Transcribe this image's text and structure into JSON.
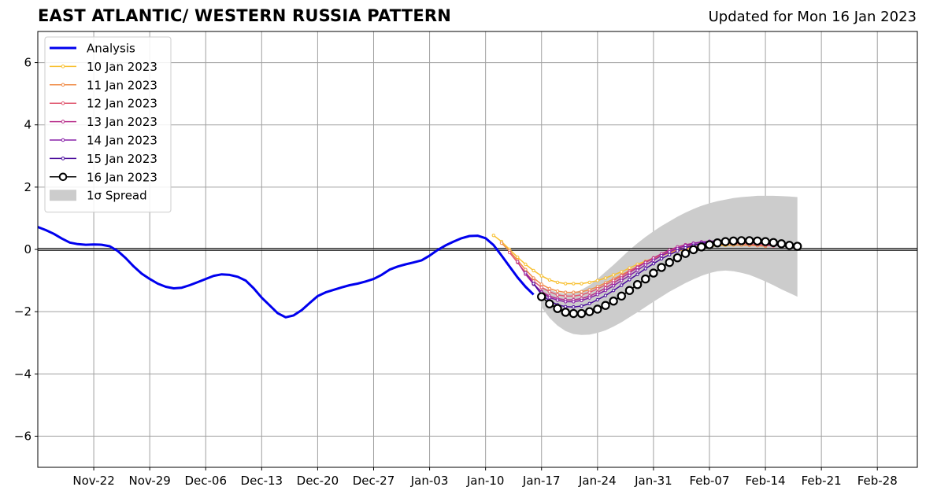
{
  "chart_data": {
    "type": "line",
    "title": "EAST ATLANTIC/ WESTERN RUSSIA PATTERN",
    "subtitle": "Updated for Mon 16 Jan 2023",
    "xlabel": "",
    "ylabel": "",
    "ylim": [
      -7,
      7
    ],
    "yticks": [
      -6,
      -4,
      -2,
      0,
      2,
      4,
      6
    ],
    "ytick_labels": [
      "−6",
      "−4",
      "−2",
      "0",
      "2",
      "4",
      "6"
    ],
    "xlim": [
      "2022-11-15",
      "2023-03-05"
    ],
    "xticks": [
      "2022-11-22",
      "2022-11-29",
      "2022-12-06",
      "2022-12-13",
      "2022-12-20",
      "2022-12-27",
      "2023-01-03",
      "2023-01-10",
      "2023-01-17",
      "2023-01-24",
      "2023-01-31",
      "2023-02-07",
      "2023-02-14",
      "2023-02-21",
      "2023-02-28"
    ],
    "xtick_labels": [
      "Nov-22",
      "Nov-29",
      "Dec-06",
      "Dec-13",
      "Dec-20",
      "Dec-27",
      "Jan-03",
      "Jan-10",
      "Jan-17",
      "Jan-24",
      "Jan-31",
      "Feb-07",
      "Feb-14",
      "Feb-21",
      "Feb-28"
    ],
    "grid": true,
    "legend_position": "top-left",
    "series": [
      {
        "name": "Analysis",
        "color": "#0000ee",
        "marker": "none",
        "x": [
          "2022-11-15",
          "2022-11-16",
          "2022-11-17",
          "2022-11-18",
          "2022-11-19",
          "2022-11-20",
          "2022-11-21",
          "2022-11-22",
          "2022-11-23",
          "2022-11-24",
          "2022-11-25",
          "2022-11-26",
          "2022-11-27",
          "2022-11-28",
          "2022-11-29",
          "2022-11-30",
          "2022-12-01",
          "2022-12-02",
          "2022-12-03",
          "2022-12-04",
          "2022-12-05",
          "2022-12-06",
          "2022-12-07",
          "2022-12-08",
          "2022-12-09",
          "2022-12-10",
          "2022-12-11",
          "2022-12-12",
          "2022-12-13",
          "2022-12-14",
          "2022-12-15",
          "2022-12-16",
          "2022-12-17",
          "2022-12-18",
          "2022-12-19",
          "2022-12-20",
          "2022-12-21",
          "2022-12-22",
          "2022-12-23",
          "2022-12-24",
          "2022-12-25",
          "2022-12-26",
          "2022-12-27",
          "2022-12-28",
          "2022-12-29",
          "2022-12-30",
          "2022-12-31",
          "2023-01-01",
          "2023-01-02",
          "2023-01-03",
          "2023-01-04",
          "2023-01-05",
          "2023-01-06",
          "2023-01-07",
          "2023-01-08",
          "2023-01-09",
          "2023-01-10",
          "2023-01-11",
          "2023-01-12",
          "2023-01-13",
          "2023-01-14",
          "2023-01-15",
          "2023-01-16"
        ],
        "y": [
          0.72,
          0.62,
          0.5,
          0.35,
          0.22,
          0.17,
          0.15,
          0.16,
          0.15,
          0.1,
          -0.05,
          -0.28,
          -0.55,
          -0.78,
          -0.95,
          -1.1,
          -1.2,
          -1.25,
          -1.23,
          -1.15,
          -1.05,
          -0.95,
          -0.85,
          -0.8,
          -0.82,
          -0.88,
          -1.0,
          -1.25,
          -1.55,
          -1.8,
          -2.05,
          -2.18,
          -2.12,
          -1.95,
          -1.72,
          -1.5,
          -1.38,
          -1.3,
          -1.22,
          -1.15,
          -1.1,
          -1.03,
          -0.95,
          -0.82,
          -0.65,
          -0.55,
          -0.48,
          -0.42,
          -0.35,
          -0.2,
          -0.02,
          0.13,
          0.25,
          0.36,
          0.43,
          0.44,
          0.36,
          0.14,
          -0.2,
          -0.55,
          -0.9,
          -1.2,
          -1.45
        ]
      },
      {
        "name": "10 Jan 2023",
        "color": "#f8c030",
        "marker": "small-circle",
        "x": [
          "2023-01-11",
          "2023-01-12",
          "2023-01-13",
          "2023-01-14",
          "2023-01-15",
          "2023-01-16",
          "2023-01-17",
          "2023-01-18",
          "2023-01-19",
          "2023-01-20",
          "2023-01-21",
          "2023-01-22",
          "2023-01-23",
          "2023-01-24",
          "2023-01-25",
          "2023-01-26",
          "2023-01-27",
          "2023-01-28",
          "2023-01-29",
          "2023-01-30",
          "2023-01-31",
          "2023-02-01",
          "2023-02-02",
          "2023-02-03",
          "2023-02-04",
          "2023-02-05",
          "2023-02-06",
          "2023-02-07",
          "2023-02-08",
          "2023-02-09",
          "2023-02-10",
          "2023-02-11",
          "2023-02-12",
          "2023-02-13"
        ],
        "y": [
          0.45,
          0.25,
          0.0,
          -0.25,
          -0.48,
          -0.68,
          -0.85,
          -0.98,
          -1.06,
          -1.1,
          -1.1,
          -1.1,
          -1.06,
          -1.0,
          -0.92,
          -0.82,
          -0.72,
          -0.6,
          -0.48,
          -0.38,
          -0.28,
          -0.2,
          -0.12,
          -0.05,
          0.0,
          0.05,
          0.08,
          0.1,
          0.12,
          0.13,
          0.14,
          0.14,
          0.14,
          0.13
        ]
      },
      {
        "name": "11 Jan 2023",
        "color": "#f08c48",
        "marker": "small-circle",
        "x": [
          "2023-01-12",
          "2023-01-13",
          "2023-01-14",
          "2023-01-15",
          "2023-01-16",
          "2023-01-17",
          "2023-01-18",
          "2023-01-19",
          "2023-01-20",
          "2023-01-21",
          "2023-01-22",
          "2023-01-23",
          "2023-01-24",
          "2023-01-25",
          "2023-01-26",
          "2023-01-27",
          "2023-01-28",
          "2023-01-29",
          "2023-01-30",
          "2023-01-31",
          "2023-02-01",
          "2023-02-02",
          "2023-02-03",
          "2023-02-04",
          "2023-02-05",
          "2023-02-06",
          "2023-02-07",
          "2023-02-08",
          "2023-02-09",
          "2023-02-10",
          "2023-02-11",
          "2023-02-12",
          "2023-02-13",
          "2023-02-14"
        ],
        "y": [
          0.2,
          -0.05,
          -0.35,
          -0.65,
          -0.92,
          -1.12,
          -1.26,
          -1.34,
          -1.38,
          -1.38,
          -1.36,
          -1.3,
          -1.2,
          -1.08,
          -0.95,
          -0.82,
          -0.68,
          -0.55,
          -0.42,
          -0.3,
          -0.2,
          -0.1,
          -0.02,
          0.04,
          0.08,
          0.11,
          0.13,
          0.14,
          0.15,
          0.15,
          0.14,
          0.13,
          0.12,
          0.1
        ]
      },
      {
        "name": "12 Jan 2023",
        "color": "#e05870",
        "marker": "small-circle",
        "x": [
          "2023-01-13",
          "2023-01-14",
          "2023-01-15",
          "2023-01-16",
          "2023-01-17",
          "2023-01-18",
          "2023-01-19",
          "2023-01-20",
          "2023-01-21",
          "2023-01-22",
          "2023-01-23",
          "2023-01-24",
          "2023-01-25",
          "2023-01-26",
          "2023-01-27",
          "2023-01-28",
          "2023-01-29",
          "2023-01-30",
          "2023-01-31",
          "2023-02-01",
          "2023-02-02",
          "2023-02-03",
          "2023-02-04",
          "2023-02-05",
          "2023-02-06",
          "2023-02-07",
          "2023-02-08",
          "2023-02-09",
          "2023-02-10",
          "2023-02-11",
          "2023-02-12",
          "2023-02-13",
          "2023-02-14",
          "2023-02-15"
        ],
        "y": [
          -0.1,
          -0.42,
          -0.75,
          -1.02,
          -1.22,
          -1.36,
          -1.46,
          -1.5,
          -1.5,
          -1.46,
          -1.38,
          -1.27,
          -1.14,
          -1.0,
          -0.85,
          -0.7,
          -0.55,
          -0.4,
          -0.27,
          -0.15,
          -0.05,
          0.04,
          0.1,
          0.15,
          0.18,
          0.2,
          0.21,
          0.21,
          0.2,
          0.19,
          0.17,
          0.15,
          0.13,
          0.11
        ]
      },
      {
        "name": "13 Jan 2023",
        "color": "#b8308c",
        "marker": "small-circle",
        "x": [
          "2023-01-14",
          "2023-01-15",
          "2023-01-16",
          "2023-01-17",
          "2023-01-18",
          "2023-01-19",
          "2023-01-20",
          "2023-01-21",
          "2023-01-22",
          "2023-01-23",
          "2023-01-24",
          "2023-01-25",
          "2023-01-26",
          "2023-01-27",
          "2023-01-28",
          "2023-01-29",
          "2023-01-30",
          "2023-01-31",
          "2023-02-01",
          "2023-02-02",
          "2023-02-03",
          "2023-02-04",
          "2023-02-05",
          "2023-02-06",
          "2023-02-07",
          "2023-02-08",
          "2023-02-09",
          "2023-02-10",
          "2023-02-11",
          "2023-02-12",
          "2023-02-13",
          "2023-02-14",
          "2023-02-15",
          "2023-02-16"
        ],
        "y": [
          -0.4,
          -0.8,
          -1.12,
          -1.35,
          -1.5,
          -1.58,
          -1.62,
          -1.62,
          -1.58,
          -1.5,
          -1.38,
          -1.24,
          -1.08,
          -0.92,
          -0.75,
          -0.58,
          -0.42,
          -0.28,
          -0.14,
          -0.02,
          0.08,
          0.15,
          0.2,
          0.24,
          0.26,
          0.27,
          0.27,
          0.26,
          0.24,
          0.22,
          0.2,
          0.17,
          0.14,
          0.12
        ]
      },
      {
        "name": "14 Jan 2023",
        "color": "#8820a8",
        "marker": "small-circle",
        "x": [
          "2023-01-15",
          "2023-01-16",
          "2023-01-17",
          "2023-01-18",
          "2023-01-19",
          "2023-01-20",
          "2023-01-21",
          "2023-01-22",
          "2023-01-23",
          "2023-01-24",
          "2023-01-25",
          "2023-01-26",
          "2023-01-27",
          "2023-01-28",
          "2023-01-29",
          "2023-01-30",
          "2023-01-31",
          "2023-02-01",
          "2023-02-02",
          "2023-02-03",
          "2023-02-04",
          "2023-02-05",
          "2023-02-06",
          "2023-02-07",
          "2023-02-08",
          "2023-02-09",
          "2023-02-10",
          "2023-02-11",
          "2023-02-12",
          "2023-02-13",
          "2023-02-14",
          "2023-02-15",
          "2023-02-16",
          "2023-02-17"
        ],
        "y": [
          -0.75,
          -1.1,
          -1.38,
          -1.55,
          -1.63,
          -1.68,
          -1.68,
          -1.64,
          -1.56,
          -1.45,
          -1.32,
          -1.17,
          -1.0,
          -0.84,
          -0.67,
          -0.5,
          -0.35,
          -0.2,
          -0.08,
          0.03,
          0.12,
          0.19,
          0.23,
          0.26,
          0.27,
          0.27,
          0.27,
          0.26,
          0.24,
          0.21,
          0.18,
          0.15,
          0.12,
          0.1
        ]
      },
      {
        "name": "15 Jan 2023",
        "color": "#4a0c9c",
        "marker": "small-circle",
        "x": [
          "2023-01-16",
          "2023-01-17",
          "2023-01-18",
          "2023-01-19",
          "2023-01-20",
          "2023-01-21",
          "2023-01-22",
          "2023-01-23",
          "2023-01-24",
          "2023-01-25",
          "2023-01-26",
          "2023-01-27",
          "2023-01-28",
          "2023-01-29",
          "2023-01-30",
          "2023-01-31",
          "2023-02-01",
          "2023-02-02",
          "2023-02-03",
          "2023-02-04",
          "2023-02-05",
          "2023-02-06",
          "2023-02-07",
          "2023-02-08",
          "2023-02-09",
          "2023-02-10",
          "2023-02-11",
          "2023-02-12",
          "2023-02-13",
          "2023-02-14",
          "2023-02-15",
          "2023-02-16",
          "2023-02-17",
          "2023-02-18"
        ],
        "y": [
          -1.1,
          -1.45,
          -1.65,
          -1.78,
          -1.84,
          -1.85,
          -1.82,
          -1.74,
          -1.62,
          -1.48,
          -1.32,
          -1.15,
          -0.97,
          -0.8,
          -0.62,
          -0.46,
          -0.3,
          -0.17,
          -0.05,
          0.05,
          0.13,
          0.19,
          0.23,
          0.25,
          0.26,
          0.26,
          0.25,
          0.24,
          0.21,
          0.19,
          0.16,
          0.13,
          0.11,
          0.08
        ]
      },
      {
        "name": "16 Jan 2023",
        "color": "#000000",
        "marker": "big-open-circle",
        "x": [
          "2023-01-17",
          "2023-01-18",
          "2023-01-19",
          "2023-01-20",
          "2023-01-21",
          "2023-01-22",
          "2023-01-23",
          "2023-01-24",
          "2023-01-25",
          "2023-01-26",
          "2023-01-27",
          "2023-01-28",
          "2023-01-29",
          "2023-01-30",
          "2023-01-31",
          "2023-02-01",
          "2023-02-02",
          "2023-02-03",
          "2023-02-04",
          "2023-02-05",
          "2023-02-06",
          "2023-02-07",
          "2023-02-08",
          "2023-02-09",
          "2023-02-10",
          "2023-02-11",
          "2023-02-12",
          "2023-02-13",
          "2023-02-14",
          "2023-02-15",
          "2023-02-16",
          "2023-02-17",
          "2023-02-18"
        ],
        "y": [
          -1.52,
          -1.75,
          -1.9,
          -2.02,
          -2.06,
          -2.06,
          -2.0,
          -1.92,
          -1.8,
          -1.66,
          -1.5,
          -1.32,
          -1.13,
          -0.95,
          -0.76,
          -0.58,
          -0.42,
          -0.27,
          -0.13,
          -0.01,
          0.08,
          0.15,
          0.21,
          0.25,
          0.27,
          0.28,
          0.28,
          0.27,
          0.25,
          0.22,
          0.18,
          0.13,
          0.1
        ]
      }
    ],
    "spread": {
      "name": "1σ Spread",
      "color": "#cccccc",
      "x": [
        "2023-01-17",
        "2023-01-18",
        "2023-01-19",
        "2023-01-20",
        "2023-01-21",
        "2023-01-22",
        "2023-01-23",
        "2023-01-24",
        "2023-01-25",
        "2023-01-26",
        "2023-01-27",
        "2023-01-28",
        "2023-01-29",
        "2023-01-30",
        "2023-01-31",
        "2023-02-01",
        "2023-02-02",
        "2023-02-03",
        "2023-02-04",
        "2023-02-05",
        "2023-02-06",
        "2023-02-07",
        "2023-02-08",
        "2023-02-09",
        "2023-02-10",
        "2023-02-11",
        "2023-02-12",
        "2023-02-13",
        "2023-02-14",
        "2023-02-15",
        "2023-02-16",
        "2023-02-17",
        "2023-02-18"
      ],
      "upper": [
        -1.2,
        -1.3,
        -1.38,
        -1.42,
        -1.4,
        -1.3,
        -1.15,
        -0.95,
        -0.72,
        -0.5,
        -0.26,
        -0.02,
        0.2,
        0.4,
        0.58,
        0.75,
        0.9,
        1.05,
        1.18,
        1.3,
        1.4,
        1.48,
        1.55,
        1.6,
        1.65,
        1.68,
        1.7,
        1.72,
        1.72,
        1.72,
        1.71,
        1.7,
        1.68
      ],
      "lower": [
        -1.85,
        -2.2,
        -2.45,
        -2.62,
        -2.72,
        -2.75,
        -2.74,
        -2.68,
        -2.6,
        -2.48,
        -2.34,
        -2.18,
        -2.02,
        -1.85,
        -1.68,
        -1.52,
        -1.36,
        -1.22,
        -1.08,
        -0.96,
        -0.85,
        -0.76,
        -0.7,
        -0.68,
        -0.7,
        -0.75,
        -0.82,
        -0.92,
        -1.03,
        -1.15,
        -1.28,
        -1.4,
        -1.52
      ]
    }
  }
}
